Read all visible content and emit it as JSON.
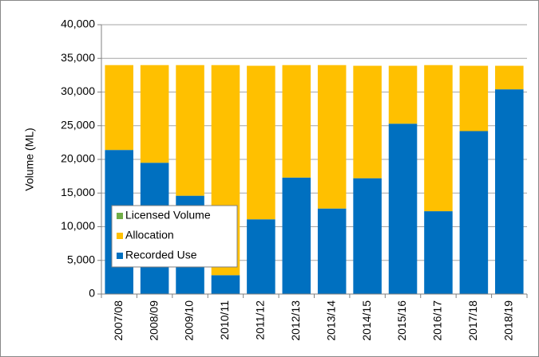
{
  "chart_data": {
    "type": "stacked_bar",
    "y_label": "Volume (ML)",
    "categories": [
      "2007/08",
      "2008/09",
      "2009/10",
      "2010/11",
      "2011/12",
      "2012/13",
      "2013/14",
      "2014/15",
      "2015/16",
      "2016/17",
      "2017/18",
      "2018/19"
    ],
    "series": [
      {
        "name": "Recorded Use",
        "color": "#0070c0",
        "values": [
          21400,
          19500,
          14600,
          2800,
          11100,
          17300,
          12700,
          17200,
          25300,
          12300,
          24200,
          30400
        ]
      },
      {
        "name": "Allocation",
        "color": "#ffc000",
        "values": [
          12600,
          14500,
          19400,
          31200,
          22800,
          16700,
          21300,
          16700,
          8600,
          21700,
          9700,
          3500
        ]
      },
      {
        "name": "Licensed Volume",
        "color": "#70ad47",
        "values": [
          0,
          0,
          0,
          0,
          0,
          0,
          0,
          0,
          0,
          0,
          0,
          0
        ]
      }
    ],
    "ylim": [
      0,
      40000
    ],
    "yticks": [
      0,
      {
        "value": 5000,
        "label": "5,000"
      },
      {
        "value": 10000,
        "label": "10,000"
      },
      {
        "value": 15000,
        "label": "15,000"
      },
      {
        "value": 20000,
        "label": "20,000"
      },
      {
        "value": 25000,
        "label": "25,000"
      },
      {
        "value": 30000,
        "label": "30,000"
      },
      {
        "value": 35000,
        "label": "35,000"
      },
      {
        "value": 40000,
        "label": "40,000"
      }
    ],
    "grid": true,
    "legend_position": "lower-left"
  }
}
